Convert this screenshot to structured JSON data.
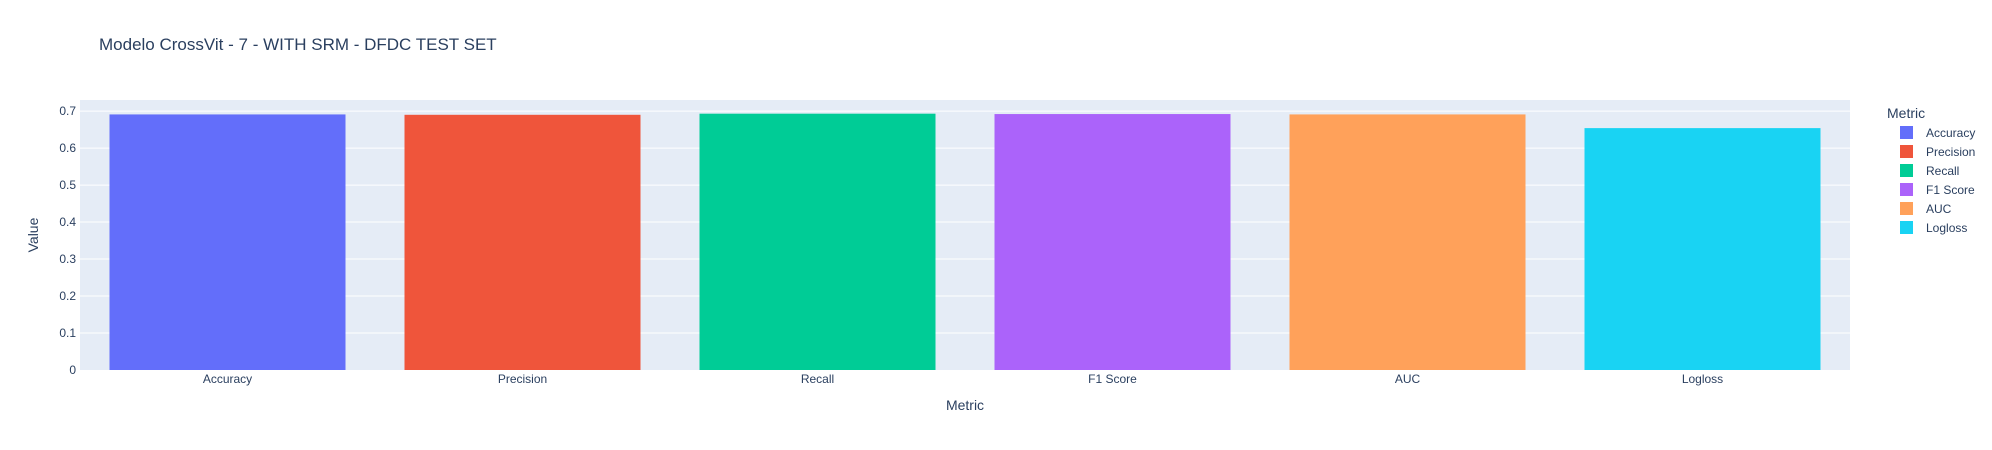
{
  "chart_data": {
    "type": "bar",
    "title": "Modelo CrossVit - 7 - WITH SRM - DFDC TEST SET",
    "xlabel": "Metric",
    "ylabel": "Value",
    "categories": [
      "Accuracy",
      "Precision",
      "Recall",
      "F1 Score",
      "AUC",
      "Logloss"
    ],
    "values": [
      0.691,
      0.69,
      0.693,
      0.692,
      0.691,
      0.654
    ],
    "colors": [
      "#636efa",
      "#ef553b",
      "#00cc96",
      "#ab63fa",
      "#ffa15a",
      "#19d3f3"
    ],
    "ylim": [
      0,
      0.73
    ],
    "yticks": [
      "0",
      "0.1",
      "0.2",
      "0.3",
      "0.4",
      "0.5",
      "0.6",
      "0.7"
    ],
    "grid": true,
    "legend": {
      "title": "Metric",
      "position": "right",
      "items": [
        "Accuracy",
        "Precision",
        "Recall",
        "F1 Score",
        "AUC",
        "Logloss"
      ]
    },
    "plot_background": "#e5ecf6"
  }
}
